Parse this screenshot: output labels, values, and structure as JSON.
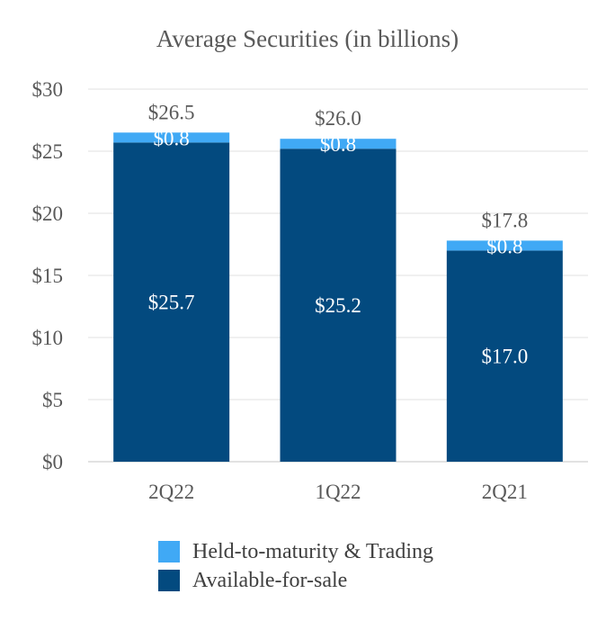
{
  "chart_data": {
    "type": "bar",
    "stacked": true,
    "title": "Average Securities (in billions)",
    "categories": [
      "2Q22",
      "1Q22",
      "2Q21"
    ],
    "series": [
      {
        "name": "Available-for-sale",
        "values": [
          25.7,
          25.2,
          17.0
        ],
        "labels": [
          "$25.7",
          "$25.2",
          "$17.0"
        ],
        "color": "#034a7f"
      },
      {
        "name": "Held-to-maturity & Trading",
        "values": [
          0.8,
          0.8,
          0.8
        ],
        "labels": [
          "$0.8",
          "$0.8",
          "$0.8"
        ],
        "color": "#40a9f5"
      }
    ],
    "totals": [
      26.5,
      26.0,
      17.8
    ],
    "total_labels": [
      "$26.5",
      "$26.0",
      "$17.8"
    ],
    "ylim": [
      0,
      30
    ],
    "yticks": [
      0,
      5,
      10,
      15,
      20,
      25,
      30
    ],
    "ytick_labels": [
      "$0",
      "$5",
      "$10",
      "$15",
      "$20",
      "$25",
      "$30"
    ],
    "xlabel": "",
    "ylabel": "",
    "grid": true,
    "legend_position": "bottom"
  },
  "legend": [
    {
      "label": "Held-to-maturity & Trading",
      "color": "#40a9f5"
    },
    {
      "label": "Available-for-sale",
      "color": "#034a7f"
    }
  ]
}
